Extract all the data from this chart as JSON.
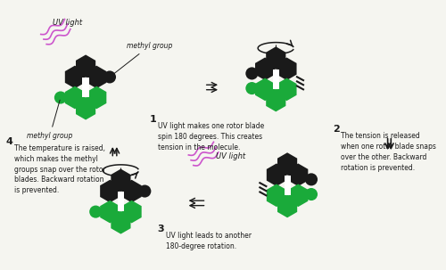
{
  "bg_color": "#f5f5f0",
  "black_hex": "#1a1a1a",
  "green_hex": "#1aaa3a",
  "white_hex": "#ffffff",
  "purple_hex": "#cc55cc",
  "step1_text": "UV light makes one rotor blade\nspin 180 degrees. This creates\ntension in the molecule.",
  "step2_text": "The tension is released\nwhen one rotor blade snaps\nover the other. Backward\nrotation is prevented.",
  "step3_text": "UV light leads to another\n180-degree rotation.",
  "step4_text": "The temperature is raised,\nwhich makes the methyl\ngroups snap over the rotor\nblades. Backward rotation\nis prevented.",
  "uv_label": "UV light",
  "methyl_group1": "methyl group",
  "methyl_group2": "methyl group"
}
